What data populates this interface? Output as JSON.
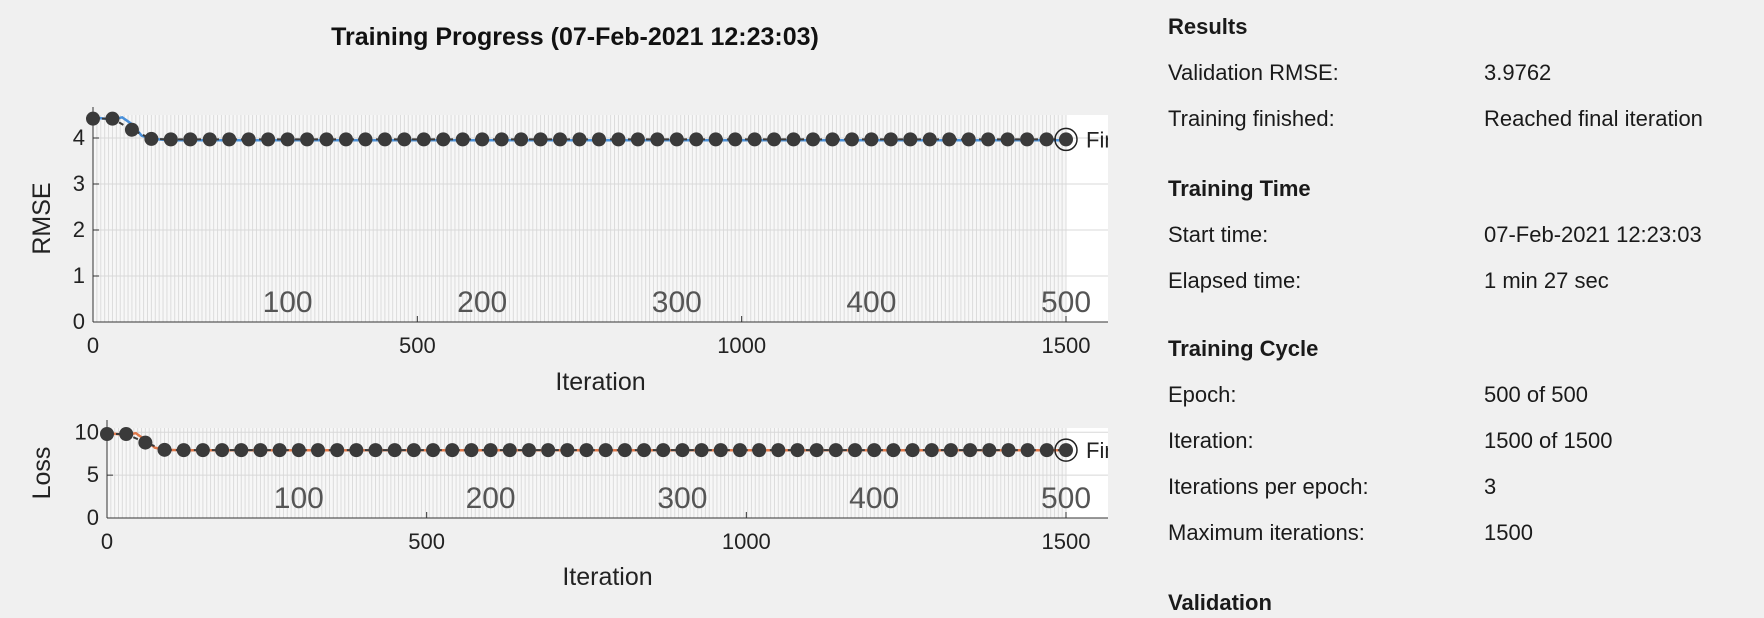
{
  "title": "Training Progress (07-Feb-2021 12:23:03)",
  "chart_data": [
    {
      "type": "line",
      "ylabel": "RMSE",
      "xlabel": "Iteration",
      "xlim": [
        0,
        1500
      ],
      "ylim": [
        0,
        4.5
      ],
      "yticks": [
        0,
        1,
        2,
        3,
        4
      ],
      "xticks": [
        0,
        500,
        1000,
        1500
      ],
      "epoch_ticks": [
        "100",
        "200",
        "300",
        "400",
        "500"
      ],
      "final_label": "Final",
      "series": [
        {
          "color": "#4a90d9",
          "x": [
            0,
            30,
            45,
            60,
            75,
            90,
            120,
            1500
          ],
          "y": [
            4.45,
            4.4,
            4.45,
            4.3,
            4.05,
            3.98,
            3.95,
            3.95
          ]
        }
      ],
      "validation": {
        "color": "#3a3a3a",
        "x": [
          0,
          30,
          60,
          90,
          120,
          150,
          180,
          210,
          240,
          270,
          300,
          330,
          360,
          390,
          420,
          450,
          480,
          510,
          540,
          570,
          600,
          630,
          660,
          690,
          720,
          750,
          780,
          810,
          840,
          870,
          900,
          930,
          960,
          990,
          1020,
          1050,
          1080,
          1110,
          1140,
          1170,
          1200,
          1230,
          1260,
          1290,
          1320,
          1350,
          1380,
          1410,
          1440,
          1470,
          1500
        ],
        "y": [
          4.42,
          4.42,
          4.18,
          3.98,
          3.97,
          3.97,
          3.97,
          3.97,
          3.97,
          3.97,
          3.97,
          3.97,
          3.97,
          3.97,
          3.97,
          3.97,
          3.97,
          3.97,
          3.97,
          3.97,
          3.97,
          3.97,
          3.97,
          3.97,
          3.97,
          3.97,
          3.97,
          3.97,
          3.97,
          3.97,
          3.97,
          3.97,
          3.97,
          3.97,
          3.97,
          3.97,
          3.97,
          3.97,
          3.97,
          3.97,
          3.97,
          3.97,
          3.97,
          3.97,
          3.97,
          3.97,
          3.97,
          3.97,
          3.97,
          3.97,
          3.97
        ]
      }
    },
    {
      "type": "line",
      "ylabel": "Loss",
      "xlabel": "Iteration",
      "xlim": [
        0,
        1500
      ],
      "ylim": [
        0,
        10.5
      ],
      "yticks": [
        0,
        5,
        10
      ],
      "xticks": [
        0,
        500,
        1000,
        1500
      ],
      "epoch_ticks": [
        "100",
        "200",
        "300",
        "400",
        "500"
      ],
      "final_label": "Final",
      "series": [
        {
          "color": "#e0784a",
          "x": [
            0,
            30,
            45,
            60,
            75,
            90,
            120,
            1500
          ],
          "y": [
            9.9,
            9.7,
            9.9,
            9.1,
            8.2,
            7.95,
            7.9,
            7.9
          ]
        }
      ],
      "validation": {
        "color": "#3a3a3a",
        "x": [
          0,
          30,
          60,
          90,
          120,
          150,
          180,
          210,
          240,
          270,
          300,
          330,
          360,
          390,
          420,
          450,
          480,
          510,
          540,
          570,
          600,
          630,
          660,
          690,
          720,
          750,
          780,
          810,
          840,
          870,
          900,
          930,
          960,
          990,
          1020,
          1050,
          1080,
          1110,
          1140,
          1170,
          1200,
          1230,
          1260,
          1290,
          1320,
          1350,
          1380,
          1410,
          1440,
          1470,
          1500
        ],
        "y": [
          9.8,
          9.8,
          8.8,
          7.95,
          7.92,
          7.92,
          7.92,
          7.92,
          7.92,
          7.92,
          7.92,
          7.92,
          7.92,
          7.92,
          7.92,
          7.92,
          7.92,
          7.92,
          7.92,
          7.92,
          7.92,
          7.92,
          7.92,
          7.92,
          7.92,
          7.92,
          7.92,
          7.92,
          7.92,
          7.92,
          7.92,
          7.92,
          7.92,
          7.92,
          7.92,
          7.92,
          7.92,
          7.92,
          7.92,
          7.92,
          7.92,
          7.92,
          7.92,
          7.92,
          7.92,
          7.92,
          7.92,
          7.92,
          7.92,
          7.92,
          7.92
        ]
      }
    }
  ],
  "results": {
    "title": "Results",
    "validation_rmse_label": "Validation RMSE:",
    "validation_rmse_value": "3.9762",
    "training_finished_label": "Training finished:",
    "training_finished_value": "Reached final iteration"
  },
  "training_time": {
    "title": "Training Time",
    "start_label": "Start time:",
    "start_value": "07-Feb-2021 12:23:03",
    "elapsed_label": "Elapsed time:",
    "elapsed_value": "1 min 27 sec"
  },
  "training_cycle": {
    "title": "Training Cycle",
    "epoch_label": "Epoch:",
    "epoch_value": "500 of 500",
    "iteration_label": "Iteration:",
    "iteration_value": "1500 of 1500",
    "iter_per_epoch_label": "Iterations per epoch:",
    "iter_per_epoch_value": "3",
    "max_iter_label": "Maximum iterations:",
    "max_iter_value": "1500"
  },
  "validation": {
    "title": "Validation"
  }
}
